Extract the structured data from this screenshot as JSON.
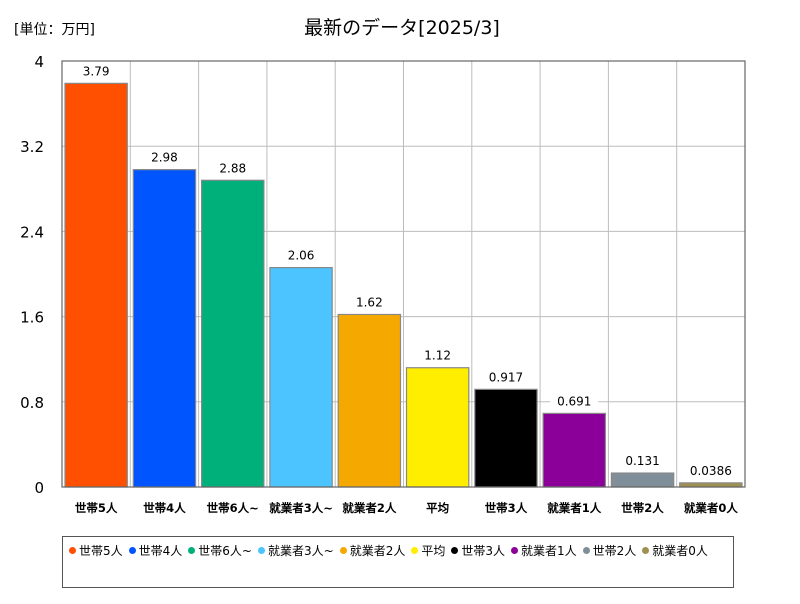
{
  "unit_label": "[単位：万円]",
  "chart_data": {
    "type": "bar",
    "title": "最新のデータ[2025/3]",
    "xlabel": "",
    "ylabel": "",
    "ylim": [
      0,
      4
    ],
    "yticks": [
      "0",
      "0.8",
      "1.6",
      "2.4",
      "3.2",
      "4"
    ],
    "ytick_values": [
      0,
      0.8,
      1.6,
      2.4,
      3.2,
      4
    ],
    "grid": true,
    "legend_position": "bottom",
    "categories": [
      "世帯5人",
      "世帯4人",
      "世帯6人~",
      "就業者3人~",
      "就業者2人",
      "平均",
      "世帯3人",
      "就業者1人",
      "世帯2人",
      "就業者0人"
    ],
    "values": [
      3.79,
      2.98,
      2.88,
      2.06,
      1.62,
      1.12,
      0.917,
      0.691,
      0.131,
      0.0386
    ],
    "value_labels": [
      "3.79",
      "2.98",
      "2.88",
      "2.06",
      "1.62",
      "1.12",
      "0.917",
      "0.691",
      "0.131",
      "0.0386"
    ],
    "colors": [
      "#ff4f00",
      "#0055ff",
      "#00b07a",
      "#4cc4ff",
      "#f5a800",
      "#ffee00",
      "#000000",
      "#8b0099",
      "#7f8e99",
      "#a09050"
    ]
  }
}
